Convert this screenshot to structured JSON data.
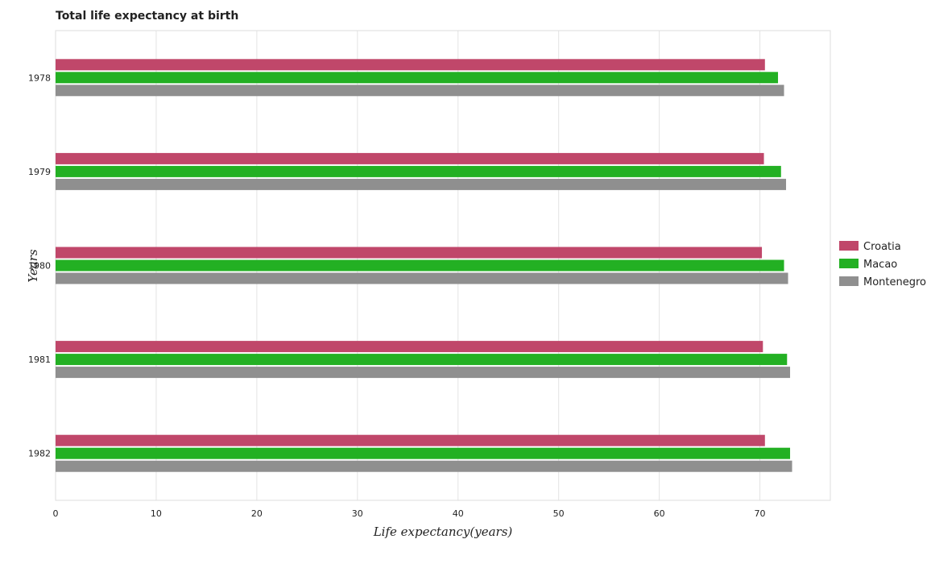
{
  "chart_data": {
    "type": "bar",
    "orientation": "horizontal",
    "title": "Total life expectancy at birth",
    "xlabel": "Life expectancy(years)",
    "ylabel": "Years",
    "categories": [
      "1978",
      "1979",
      "1980",
      "1981",
      "1982"
    ],
    "series": [
      {
        "name": "Croatia",
        "color": "#c0476a",
        "values": [
          70.5,
          70.4,
          70.2,
          70.3,
          70.5
        ]
      },
      {
        "name": "Macao",
        "color": "#23b023",
        "values": [
          71.8,
          72.1,
          72.4,
          72.7,
          73.0
        ]
      },
      {
        "name": "Montenegro",
        "color": "#8f8f8f",
        "values": [
          72.4,
          72.6,
          72.8,
          73.0,
          73.2
        ]
      }
    ],
    "xlim": [
      0,
      77
    ],
    "xticks": [
      0,
      10,
      20,
      30,
      40,
      50,
      60,
      70
    ],
    "grid": true,
    "legend_position": "right"
  }
}
